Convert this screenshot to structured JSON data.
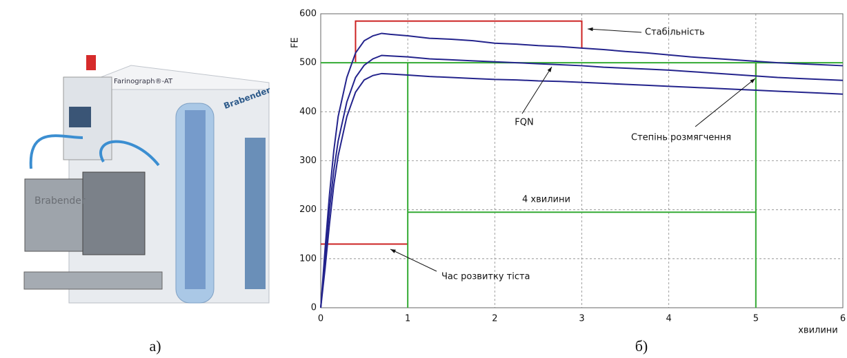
{
  "figure": {
    "photo_caption": "а)",
    "chart_caption": "б)",
    "photo_labels": [
      "Brabender",
      "Farinograph®-AT",
      "Brabender"
    ]
  },
  "chart_data": {
    "type": "line",
    "xlabel": "хвилини",
    "ylabel": "FE",
    "x": [
      0,
      0.05,
      0.1,
      0.15,
      0.2,
      0.3,
      0.4,
      0.5,
      0.6,
      0.7,
      0.8,
      1,
      1.25,
      1.5,
      1.75,
      2,
      2.25,
      2.5,
      2.75,
      3,
      3.25,
      3.5,
      3.75,
      4,
      4.25,
      4.5,
      4.75,
      5,
      5.25,
      5.5,
      5.75,
      6
    ],
    "series": [
      {
        "color": "#23238c",
        "values": [
          0,
          120,
          230,
          320,
          390,
          470,
          520,
          545,
          555,
          560,
          558,
          555,
          550,
          548,
          545,
          540,
          538,
          535,
          533,
          530,
          527,
          523,
          520,
          516,
          512,
          509,
          506,
          503,
          500,
          498,
          496,
          494
        ]
      },
      {
        "color": "#23238c",
        "values": [
          0,
          100,
          200,
          280,
          340,
          420,
          470,
          495,
          508,
          515,
          514,
          512,
          508,
          506,
          504,
          502,
          500,
          498,
          496,
          494,
          491,
          489,
          487,
          485,
          482,
          479,
          476,
          473,
          470,
          468,
          466,
          464
        ]
      },
      {
        "color": "#23238c",
        "values": [
          0,
          80,
          170,
          250,
          310,
          390,
          440,
          465,
          474,
          478,
          477,
          475,
          472,
          470,
          468,
          466,
          465,
          463,
          462,
          460,
          458,
          456,
          454,
          452,
          450,
          448,
          446,
          444,
          442,
          440,
          438,
          436
        ]
      }
    ],
    "xlim": [
      0,
      6
    ],
    "xticks": [
      0,
      1,
      2,
      3,
      4,
      5,
      6
    ],
    "ylim": [
      0,
      600
    ],
    "yticks": [
      0,
      100,
      200,
      300,
      400,
      500,
      600
    ],
    "grid": true,
    "shapes": [
      {
        "color": "#cc2222",
        "x": [
          0.4,
          0.4,
          3,
          3
        ],
        "y": [
          500,
          585,
          585,
          530
        ]
      },
      {
        "color": "#cc2222",
        "x": [
          0,
          1
        ],
        "y": [
          130,
          130
        ]
      },
      {
        "color": "#cc2222",
        "x": [
          5,
          5
        ],
        "y": [
          500,
          470
        ]
      },
      {
        "color": "#33aa33",
        "x": [
          0,
          6
        ],
        "y": [
          500,
          500
        ]
      },
      {
        "color": "#33aa33",
        "x": [
          1,
          1
        ],
        "y": [
          0,
          500
        ]
      },
      {
        "color": "#33aa33",
        "x": [
          5,
          5
        ],
        "y": [
          0,
          500
        ]
      },
      {
        "color": "#33aa33",
        "x": [
          1,
          5
        ],
        "y": [
          195,
          195
        ]
      }
    ],
    "annotations": [
      "Стабільність",
      "FQN",
      "Степінь розмягчення",
      "Час розвитку тіста",
      "4 хвилини"
    ]
  }
}
